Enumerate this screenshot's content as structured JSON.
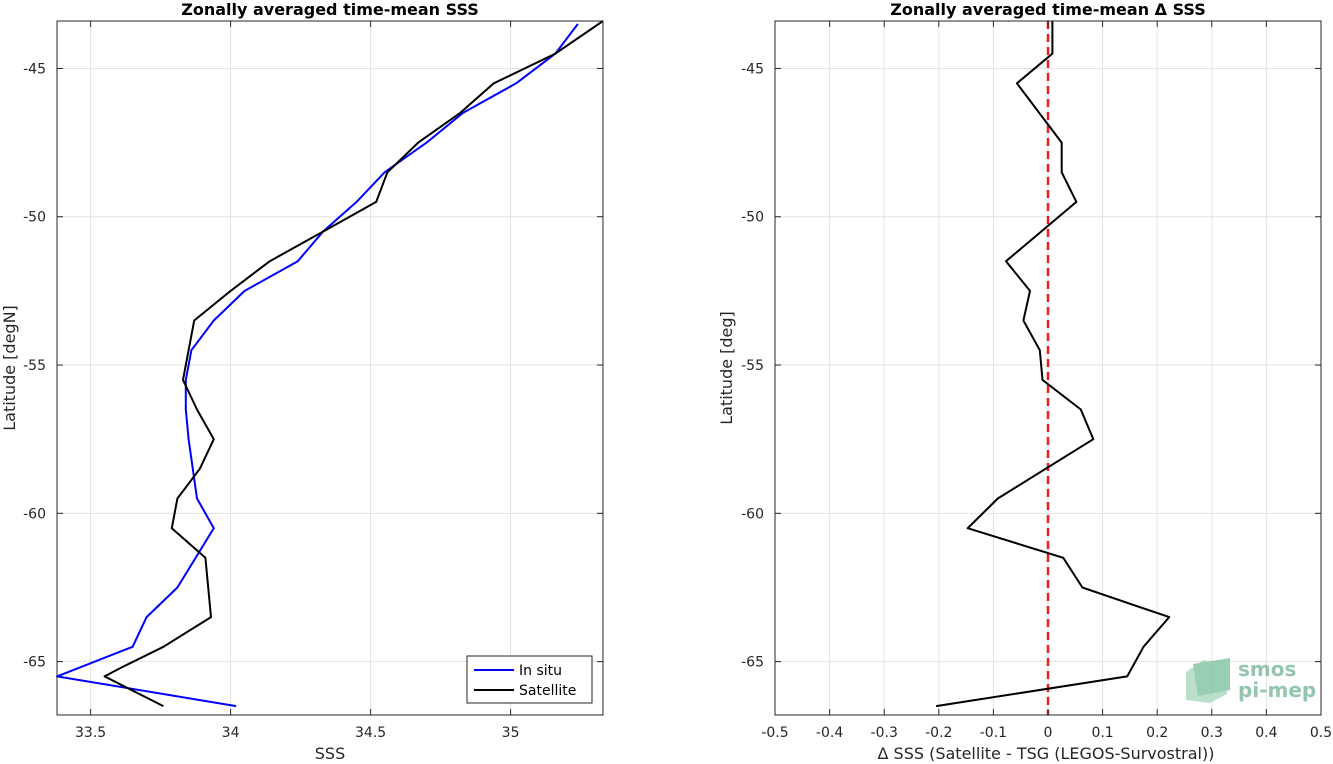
{
  "chart_data": [
    {
      "type": "line",
      "title": "Zonally averaged time-mean SSS",
      "xlabel": "SSS",
      "ylabel": "Latitude [degN]",
      "xlim": [
        33.38,
        35.33
      ],
      "ylim": [
        -66.8,
        -43.4
      ],
      "xticks": [
        33.5,
        34,
        34.5,
        35
      ],
      "xtick_labels": [
        "33.5",
        "34",
        "34.5",
        "35"
      ],
      "yticks": [
        -65,
        -60,
        -55,
        -50,
        -45
      ],
      "ytick_labels": [
        "-65",
        "-60",
        "-55",
        "-50",
        "-45"
      ],
      "grid": true,
      "legend_position": "bottom-right",
      "series": [
        {
          "name": "In situ",
          "color": "#0000ff",
          "points": [
            [
              34.02,
              -66.5
            ],
            [
              33.38,
              -65.5
            ],
            [
              33.65,
              -64.5
            ],
            [
              33.7,
              -63.5
            ],
            [
              33.81,
              -62.5
            ],
            [
              33.94,
              -60.5
            ],
            [
              33.88,
              -59.5
            ],
            [
              33.85,
              -57.5
            ],
            [
              33.84,
              -56.5
            ],
            [
              33.84,
              -55.5
            ],
            [
              33.86,
              -54.5
            ],
            [
              33.94,
              -53.5
            ],
            [
              34.05,
              -52.5
            ],
            [
              34.24,
              -51.5
            ],
            [
              34.33,
              -50.5
            ],
            [
              34.45,
              -49.5
            ],
            [
              34.55,
              -48.5
            ],
            [
              34.7,
              -47.5
            ],
            [
              34.83,
              -46.5
            ],
            [
              35.02,
              -45.5
            ],
            [
              35.16,
              -44.5
            ],
            [
              35.24,
              -43.5
            ]
          ]
        },
        {
          "name": "Satellite",
          "color": "#000000",
          "points": [
            [
              33.76,
              -66.5
            ],
            [
              33.55,
              -65.5
            ],
            [
              33.61,
              -65.2
            ],
            [
              33.76,
              -64.5
            ],
            [
              33.93,
              -63.5
            ],
            [
              33.92,
              -62.5
            ],
            [
              33.91,
              -61.5
            ],
            [
              33.79,
              -60.5
            ],
            [
              33.81,
              -59.5
            ],
            [
              33.89,
              -58.5
            ],
            [
              33.94,
              -57.5
            ],
            [
              33.88,
              -56.5
            ],
            [
              33.83,
              -55.5
            ],
            [
              33.85,
              -54.5
            ],
            [
              33.87,
              -53.5
            ],
            [
              34.0,
              -52.5
            ],
            [
              34.14,
              -51.5
            ],
            [
              34.33,
              -50.5
            ],
            [
              34.52,
              -49.5
            ],
            [
              34.56,
              -48.5
            ],
            [
              34.67,
              -47.5
            ],
            [
              34.82,
              -46.5
            ],
            [
              34.94,
              -45.5
            ],
            [
              35.16,
              -44.5
            ],
            [
              35.33,
              -43.4
            ]
          ]
        }
      ]
    },
    {
      "type": "line",
      "title": "Zonally averaged time-mean Δ SSS",
      "xlabel": "Δ SSS (Satellite - TSG (LEGOS-Survostral))",
      "ylabel": "Latitude [deg]",
      "xlim": [
        -0.5,
        0.5
      ],
      "ylim": [
        -66.8,
        -43.4
      ],
      "xticks": [
        -0.5,
        -0.4,
        -0.3,
        -0.2,
        -0.1,
        0,
        0.1,
        0.2,
        0.3,
        0.4,
        0.5
      ],
      "xtick_labels": [
        "-0.5",
        "-0.4",
        "-0.3",
        "-0.2",
        "-0.1",
        "0",
        "0.1",
        "0.2",
        "0.3",
        "0.4",
        "0.5"
      ],
      "yticks": [
        -65,
        -60,
        -55,
        -50,
        -45
      ],
      "ytick_labels": [
        "-65",
        "-60",
        "-55",
        "-50",
        "-45"
      ],
      "grid": true,
      "reference_line": {
        "x": 0,
        "color": "#ee1c1c",
        "style": "dashed"
      },
      "series": [
        {
          "color": "#000000",
          "points": [
            [
              -0.205,
              -66.5
            ],
            [
              0.145,
              -65.5
            ],
            [
              0.175,
              -64.5
            ],
            [
              0.222,
              -63.5
            ],
            [
              0.063,
              -62.5
            ],
            [
              0.028,
              -61.5
            ],
            [
              -0.147,
              -60.5
            ],
            [
              -0.092,
              -59.5
            ],
            [
              0.083,
              -57.5
            ],
            [
              0.06,
              -56.5
            ],
            [
              -0.01,
              -55.5
            ],
            [
              -0.015,
              -54.5
            ],
            [
              -0.045,
              -53.5
            ],
            [
              -0.033,
              -52.5
            ],
            [
              -0.077,
              -51.5
            ],
            [
              0.052,
              -49.5
            ],
            [
              0.025,
              -48.5
            ],
            [
              0.025,
              -47.5
            ],
            [
              -0.057,
              -45.5
            ],
            [
              0.008,
              -44.5
            ],
            [
              0.008,
              -43.4
            ]
          ]
        }
      ]
    }
  ],
  "watermark": {
    "line1": "smos",
    "line2": "pi-mep"
  },
  "legend": {
    "items": [
      "In situ",
      "Satellite"
    ]
  }
}
